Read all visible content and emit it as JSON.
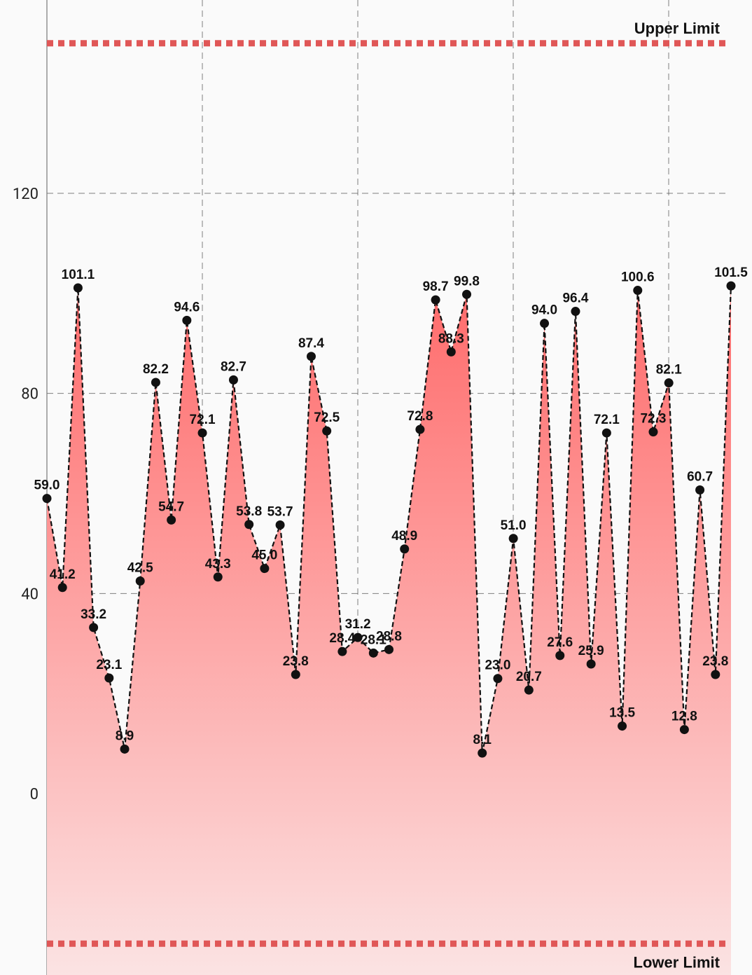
{
  "chart_data": {
    "type": "area",
    "series": [
      {
        "values": [
          59.0,
          41.2,
          101.1,
          33.2,
          23.1,
          8.9,
          42.5,
          82.2,
          54.7,
          94.6,
          72.1,
          43.3,
          82.7,
          53.8,
          45.0,
          53.7,
          23.8,
          87.4,
          72.5,
          28.4,
          31.2,
          28.1,
          28.8,
          48.9,
          72.8,
          98.7,
          88.3,
          99.8,
          8.1,
          23.0,
          51.0,
          20.7,
          94.0,
          27.6,
          96.4,
          25.9,
          72.1,
          13.5,
          100.6,
          72.3,
          82.1,
          12.8,
          60.7,
          23.8,
          101.5
        ],
        "labels": [
          "59.0",
          "41.2",
          "101.1",
          "33.2",
          "23.1",
          "8.9",
          "42.5",
          "82.2",
          "54.7",
          "94.6",
          "72.1",
          "43.3",
          "82.7",
          "53.8",
          "45.0",
          "53.7",
          "23.8",
          "87.4",
          "72.5",
          "28.4",
          "31.2",
          "28.1",
          "28.8",
          "48.9",
          "72.8",
          "98.7",
          "88.3",
          "99.8",
          "8.1",
          "23.0",
          "51.0",
          "20.7",
          "94.0",
          "27.6",
          "96.4",
          "25.9",
          "72.1",
          "13.5",
          "100.6",
          "72.3",
          "82.1",
          "12.8",
          "60.7",
          "23.8",
          "101.5"
        ]
      }
    ],
    "yticks": [
      "120",
      "80",
      "40",
      "0"
    ],
    "ytick_values": [
      120,
      80,
      40,
      0
    ],
    "ylim": [
      -36,
      157
    ],
    "limit_lines": [
      {
        "label": "Upper Limit",
        "value": 150
      },
      {
        "label": "Lower Limit",
        "value": -30
      }
    ],
    "colors": {
      "line": "#111111",
      "fill_top": "#ff6b6b",
      "fill_bottom": "#fbe3e3",
      "limit": "#e05757",
      "grid": "#555555"
    },
    "grid": true,
    "legend": false
  }
}
